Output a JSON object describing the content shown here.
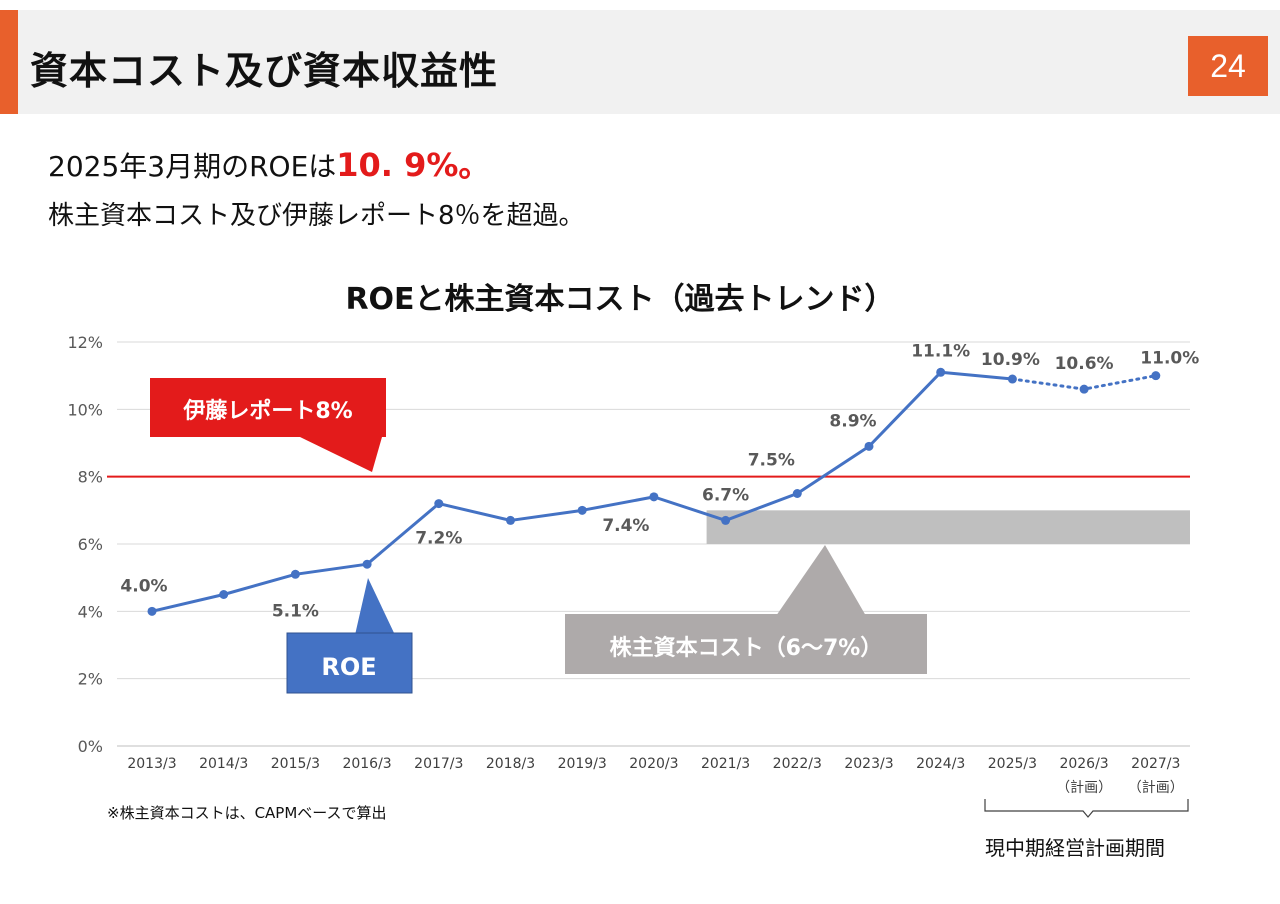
{
  "header": {
    "title": "資本コスト及び資本収益性",
    "page_number": "24",
    "accent_color": "#e8602c"
  },
  "headline": {
    "prefix": "2025年3月期のROEは",
    "highlight": "10. 9%。",
    "highlight_color": "#e31b1b"
  },
  "subline": "株主資本コスト及び伊藤レポート8％を超過。",
  "chart_data": {
    "type": "line",
    "title": "ROEと株主資本コスト（過去トレンド）",
    "categories": [
      "2013/3",
      "2014/3",
      "2015/3",
      "2016/3",
      "2017/3",
      "2018/3",
      "2019/3",
      "2020/3",
      "2021/3",
      "2022/3",
      "2023/3",
      "2024/3",
      "2025/3",
      "2026/3",
      "2027/3"
    ],
    "category_sublabels": [
      "",
      "",
      "",
      "",
      "",
      "",
      "",
      "",
      "",
      "",
      "",
      "",
      "",
      "（計画）",
      "（計画）"
    ],
    "y_ticks": [
      "0%",
      "2%",
      "4%",
      "6%",
      "8%",
      "10%",
      "12%"
    ],
    "ylim": [
      0,
      12
    ],
    "grid": true,
    "series": [
      {
        "name": "ROE",
        "values": [
          4.0,
          4.5,
          5.1,
          5.4,
          7.2,
          6.7,
          7.0,
          7.4,
          6.7,
          7.5,
          8.9,
          11.1,
          10.9,
          10.6,
          11.0
        ],
        "color": "#4472c4",
        "dotted_from_index": 12
      }
    ],
    "data_labels": [
      {
        "index": 0,
        "text": "4.0%"
      },
      {
        "index": 2,
        "text": "5.1%"
      },
      {
        "index": 4,
        "text": "7.2%"
      },
      {
        "index": 7,
        "text": "7.4%"
      },
      {
        "index": 8,
        "text": "6.7%"
      },
      {
        "index": 9,
        "text": "7.5%"
      },
      {
        "index": 10,
        "text": "8.9%"
      },
      {
        "index": 11,
        "text": "11.1%"
      },
      {
        "index": 12,
        "text": "10.9%"
      },
      {
        "index": 13,
        "text": "10.6%"
      },
      {
        "index": 14,
        "text": "11.0%"
      }
    ],
    "reference_line": {
      "value": 8,
      "color": "#e31b1b",
      "label": "伊藤レポート8%"
    },
    "cost_band": {
      "from": 6,
      "to": 7,
      "start_index": 8,
      "label": "株主資本コスト（6～7%）",
      "color": "#bfbfbf"
    },
    "roe_callout": {
      "label": "ROE",
      "color": "#4472c4"
    }
  },
  "footnote": "※株主資本コストは、CAPMベースで算出",
  "period_label": "現中期経営計画期間"
}
